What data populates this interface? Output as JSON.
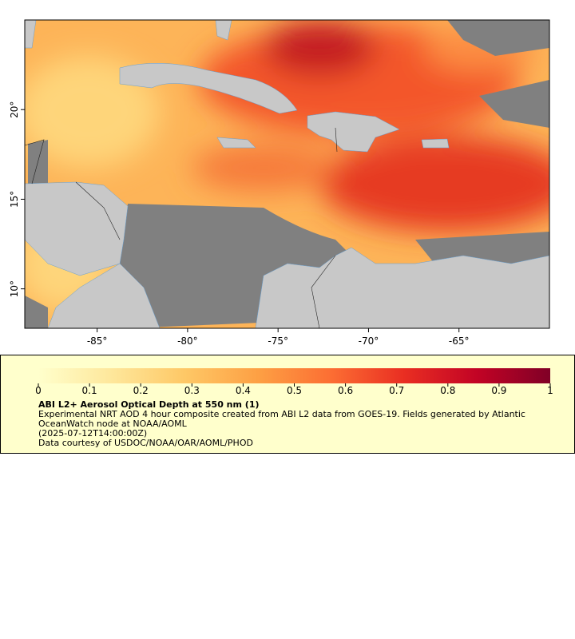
{
  "map": {
    "xlim": [
      -89,
      -60
    ],
    "ylim": [
      7.8,
      25
    ],
    "xticks": [
      {
        "value": -85,
        "label": "-85°"
      },
      {
        "value": -80,
        "label": "-80°"
      },
      {
        "value": -75,
        "label": "-75°"
      },
      {
        "value": -70,
        "label": "-70°"
      },
      {
        "value": -65,
        "label": "-65°"
      }
    ],
    "yticks": [
      {
        "value": 10,
        "label": "10°"
      },
      {
        "value": 15,
        "label": "15°"
      },
      {
        "value": 20,
        "label": "20°"
      }
    ]
  },
  "colorbar": {
    "range": [
      0,
      1
    ],
    "ticks": [
      0,
      0.1,
      0.2,
      0.3,
      0.4,
      0.5,
      0.6,
      0.7,
      0.8,
      0.9,
      1
    ],
    "colors": [
      "#ffffcc",
      "#fee79b",
      "#fec866",
      "#fda044",
      "#fc6e33",
      "#e92e22",
      "#c20325",
      "#800026"
    ]
  },
  "legend": {
    "title": "ABI L2+ Aerosol Optical Depth at 550 nm (1)",
    "lines": [
      "Experimental NRT AOD 4 hour composite created from ABI L2 data from GOES-19. Fields generated by Atlantic OceanWatch node at NOAA/AOML",
      "(2025-07-12T14:00:00Z)",
      "Data courtesy of USDOC/NOAA/OAR/AOML/PHOD"
    ]
  }
}
